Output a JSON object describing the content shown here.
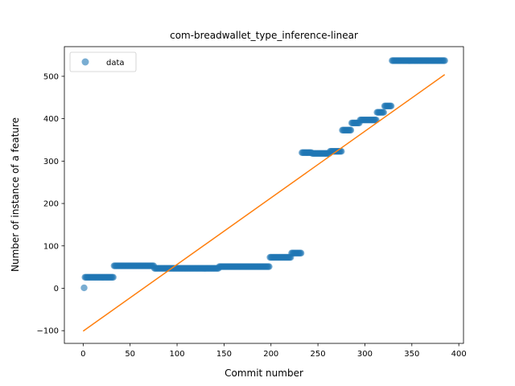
{
  "chart_data": {
    "type": "scatter",
    "title": "com-breadwallet_type_inference-linear",
    "xlabel": "Commit number",
    "ylabel": "Number of instance of a feature",
    "xlim": [
      -20,
      405
    ],
    "ylim": [
      -130,
      570
    ],
    "x_ticks": [
      0,
      50,
      100,
      150,
      200,
      250,
      300,
      350,
      400
    ],
    "y_ticks": [
      -100,
      0,
      100,
      200,
      300,
      400,
      500
    ],
    "y_tick_labels": [
      "−100",
      "0",
      "100",
      "200",
      "300",
      "400",
      "500"
    ],
    "legend": {
      "placement": "top-left",
      "entries": [
        "data"
      ]
    },
    "grid": false,
    "colors": {
      "data": "#1f77b4",
      "fit": "#ff7f0e"
    },
    "data_segments": [
      {
        "x_start": 1,
        "x_end": 1,
        "y": 1
      },
      {
        "x_start": 2,
        "x_end": 32,
        "y": 26
      },
      {
        "x_start": 33,
        "x_end": 75,
        "y": 53
      },
      {
        "x_start": 76,
        "x_end": 144,
        "y": 47
      },
      {
        "x_start": 145,
        "x_end": 198,
        "y": 51
      },
      {
        "x_start": 199,
        "x_end": 221,
        "y": 73
      },
      {
        "x_start": 222,
        "x_end": 232,
        "y": 83
      },
      {
        "x_start": 233,
        "x_end": 243,
        "y": 320
      },
      {
        "x_start": 244,
        "x_end": 262,
        "y": 318
      },
      {
        "x_start": 263,
        "x_end": 275,
        "y": 323
      },
      {
        "x_start": 276,
        "x_end": 285,
        "y": 373
      },
      {
        "x_start": 286,
        "x_end": 294,
        "y": 390
      },
      {
        "x_start": 295,
        "x_end": 312,
        "y": 397
      },
      {
        "x_start": 313,
        "x_end": 320,
        "y": 415
      },
      {
        "x_start": 321,
        "x_end": 328,
        "y": 430
      },
      {
        "x_start": 329,
        "x_end": 385,
        "y": 537
      }
    ],
    "fit_line": {
      "x": [
        0,
        385
      ],
      "y": [
        -101,
        504
      ]
    }
  }
}
